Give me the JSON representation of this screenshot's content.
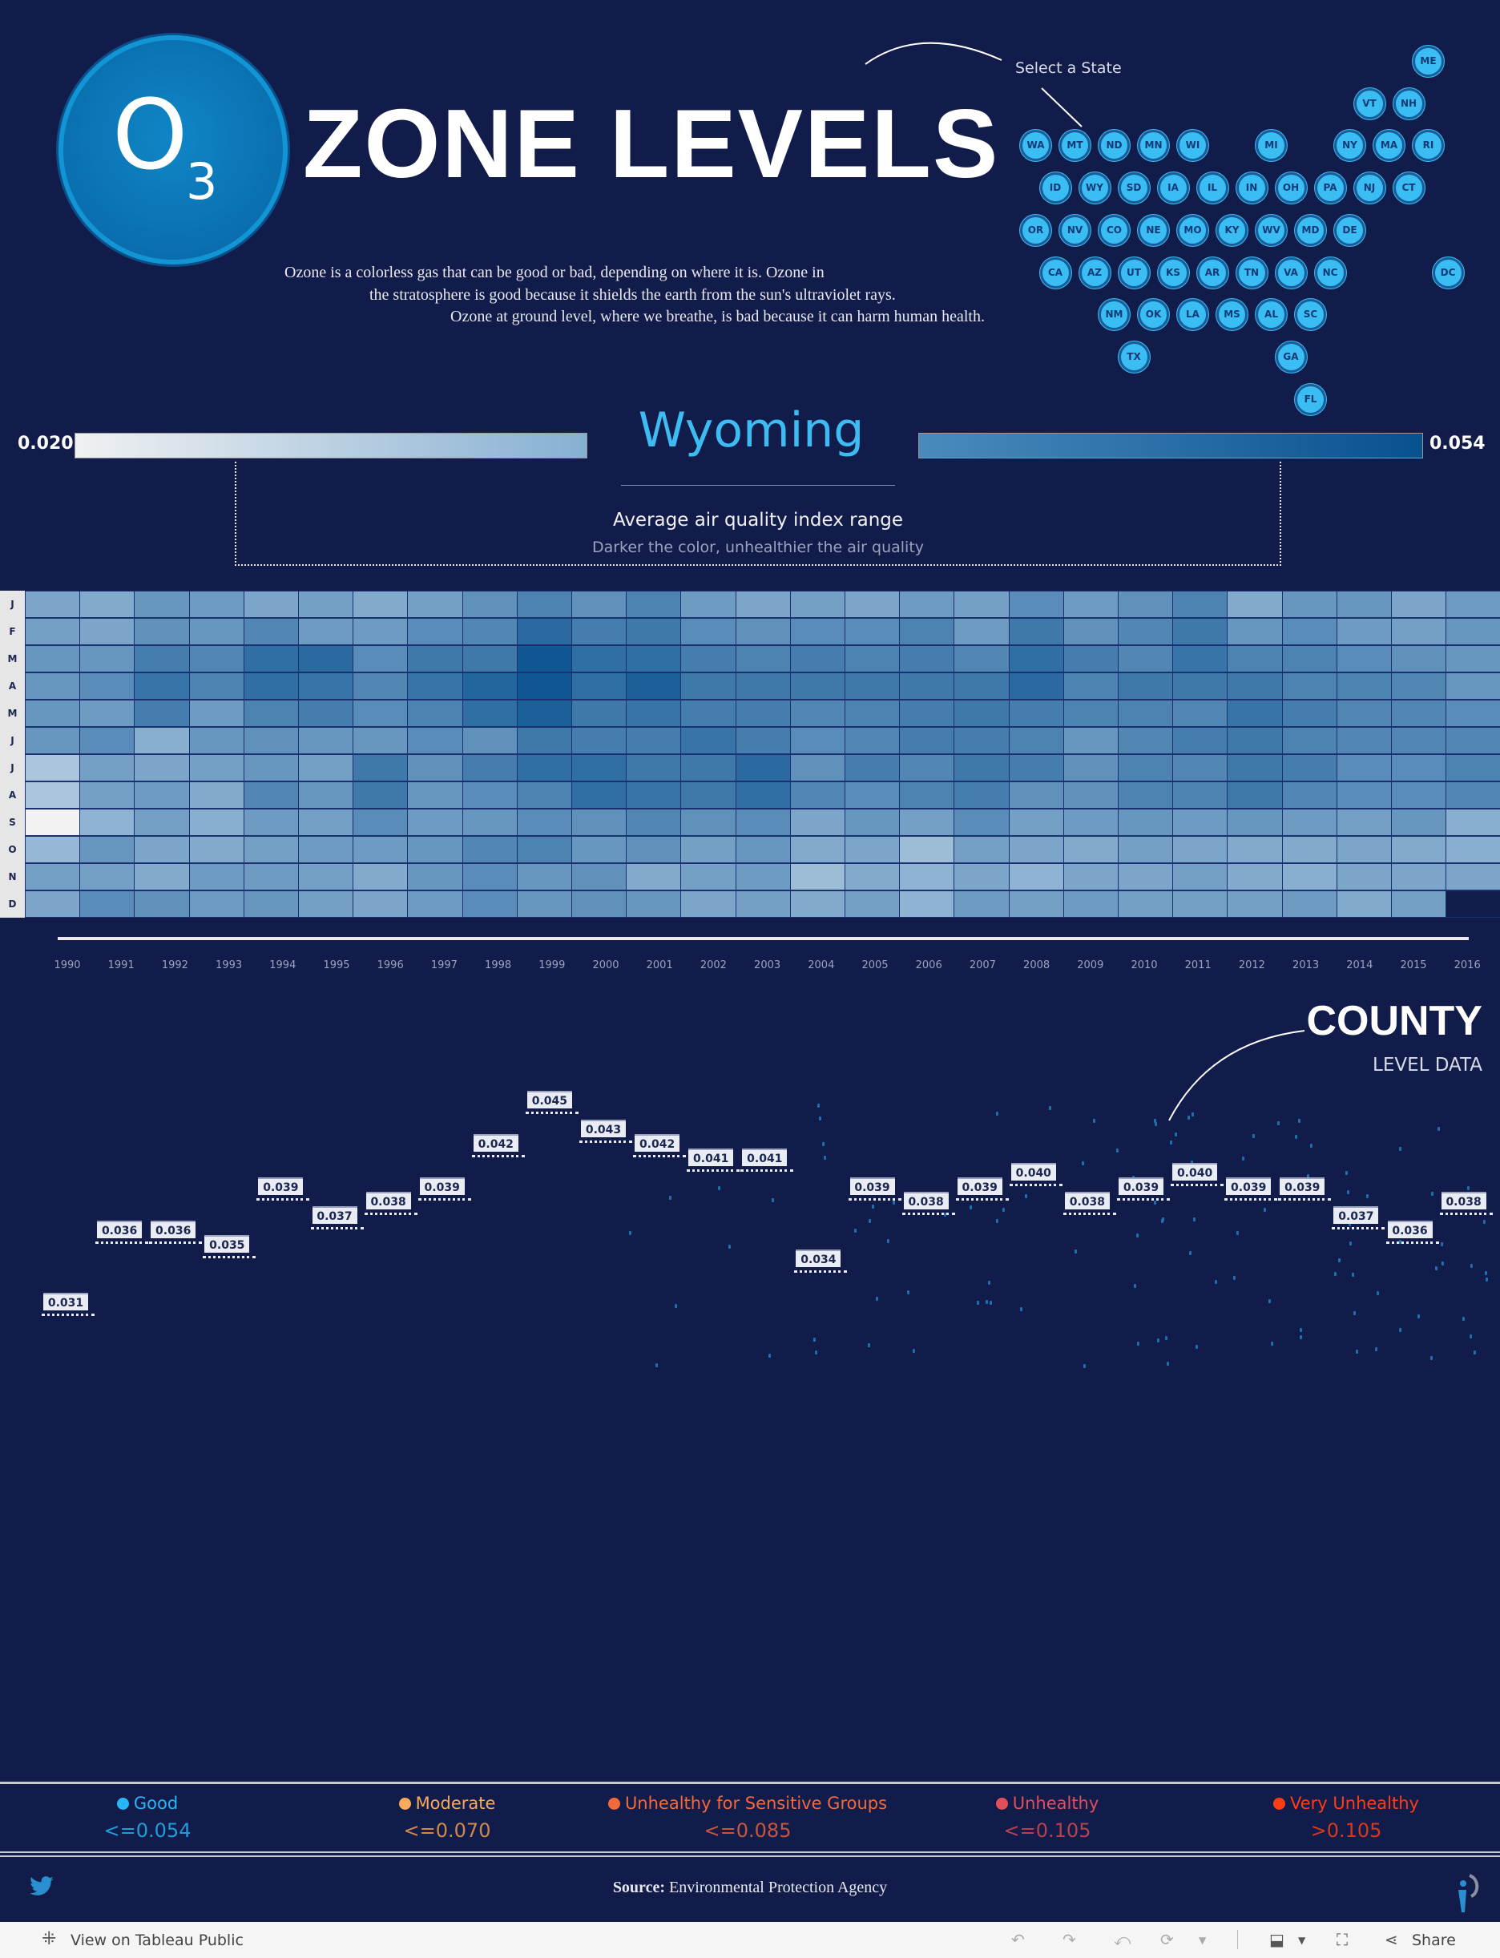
{
  "header": {
    "logo_main": "O",
    "logo_sub": "3",
    "title": "ZONE LEVELS",
    "description": [
      "Ozone is a colorless gas that can be good or bad, depending on where it is. Ozone in",
      "the stratosphere is good because it shields the earth from the sun's ultraviolet rays.",
      "Ozone at ground level, where we breathe, is bad because it can harm human health."
    ]
  },
  "state_selector": {
    "label": "Select a State",
    "tile_color": "#39bdf2",
    "selected": "WY",
    "states": [
      "ME",
      "VT",
      "NH",
      "WA",
      "MT",
      "ND",
      "MN",
      "WI",
      "MI",
      "NY",
      "MA",
      "RI",
      "ID",
      "WY",
      "SD",
      "IA",
      "IL",
      "IN",
      "OH",
      "PA",
      "NJ",
      "CT",
      "OR",
      "NV",
      "CO",
      "NE",
      "MO",
      "KY",
      "WV",
      "MD",
      "DE",
      "CA",
      "AZ",
      "UT",
      "KS",
      "AR",
      "TN",
      "VA",
      "NC",
      "DC",
      "NM",
      "OK",
      "LA",
      "MS",
      "AL",
      "SC",
      "TX",
      "GA",
      "FL"
    ]
  },
  "color_scale": {
    "min_label": "0.020",
    "max_label": "0.054",
    "state_name": "Wyoming",
    "title": "Average air quality index range",
    "subtitle": "Darker the color, unhealthier the air quality"
  },
  "county": {
    "title": "COUNTY",
    "subtitle": "LEVEL DATA"
  },
  "chart_data": [
    {
      "type": "heatmap",
      "title": "",
      "x_categories": [
        "1990",
        "1991",
        "1992",
        "1993",
        "1994",
        "1995",
        "1996",
        "1997",
        "1998",
        "1999",
        "2000",
        "2001",
        "2002",
        "2003",
        "2004",
        "2005",
        "2006",
        "2007",
        "2008",
        "2009",
        "2010",
        "2011",
        "2012",
        "2013",
        "2014",
        "2015",
        "2016"
      ],
      "y_categories": [
        "J",
        "F",
        "M",
        "A",
        "M",
        "J",
        "J",
        "A",
        "S",
        "O",
        "N",
        "D"
      ],
      "color_range": [
        0.02,
        0.054
      ],
      "colors": {
        "low": "#f2f2f2",
        "mid": "#8fb4d3",
        "high": "#08518f"
      },
      "values": [
        [
          0.037,
          0.036,
          0.04,
          0.039,
          0.037,
          0.038,
          0.036,
          0.038,
          0.041,
          0.044,
          0.041,
          0.044,
          0.039,
          0.037,
          0.038,
          0.037,
          0.039,
          0.038,
          0.042,
          0.039,
          0.041,
          0.044,
          0.036,
          0.04,
          0.04,
          0.037,
          0.039
        ],
        [
          0.038,
          0.037,
          0.041,
          0.04,
          0.043,
          0.039,
          0.039,
          0.042,
          0.043,
          0.049,
          0.045,
          0.046,
          0.042,
          0.041,
          0.042,
          0.042,
          0.044,
          0.039,
          0.046,
          0.041,
          0.043,
          0.046,
          0.04,
          0.042,
          0.039,
          0.038,
          0.04
        ],
        [
          0.04,
          0.04,
          0.045,
          0.043,
          0.048,
          0.049,
          0.042,
          0.046,
          0.046,
          0.053,
          0.048,
          0.048,
          0.045,
          0.044,
          0.045,
          0.044,
          0.045,
          0.043,
          0.048,
          0.045,
          0.043,
          0.047,
          0.044,
          0.044,
          0.042,
          0.041,
          0.04
        ],
        [
          0.04,
          0.042,
          0.047,
          0.044,
          0.048,
          0.047,
          0.043,
          0.047,
          0.05,
          0.053,
          0.048,
          0.051,
          0.046,
          0.046,
          0.046,
          0.046,
          0.046,
          0.046,
          0.049,
          0.044,
          0.046,
          0.046,
          0.046,
          0.044,
          0.044,
          0.043,
          0.04
        ],
        [
          0.04,
          0.039,
          0.045,
          0.039,
          0.044,
          0.045,
          0.042,
          0.044,
          0.048,
          0.051,
          0.046,
          0.047,
          0.045,
          0.045,
          0.043,
          0.044,
          0.045,
          0.046,
          0.045,
          0.044,
          0.044,
          0.043,
          0.047,
          0.045,
          0.043,
          0.043,
          0.042
        ],
        [
          0.04,
          0.042,
          0.035,
          0.04,
          0.041,
          0.04,
          0.04,
          0.042,
          0.041,
          0.046,
          0.045,
          0.045,
          0.047,
          0.045,
          0.042,
          0.043,
          0.045,
          0.045,
          0.044,
          0.04,
          0.043,
          0.045,
          0.046,
          0.044,
          0.043,
          0.043,
          0.043
        ],
        [
          0.03,
          0.038,
          0.037,
          0.038,
          0.04,
          0.038,
          0.046,
          0.041,
          0.045,
          0.048,
          0.048,
          0.046,
          0.046,
          0.049,
          0.041,
          0.045,
          0.043,
          0.046,
          0.045,
          0.041,
          0.044,
          0.043,
          0.046,
          0.045,
          0.042,
          0.042,
          0.044
        ],
        [
          0.03,
          0.038,
          0.039,
          0.036,
          0.043,
          0.04,
          0.046,
          0.04,
          0.042,
          0.044,
          0.048,
          0.047,
          0.046,
          0.048,
          0.043,
          0.042,
          0.044,
          0.045,
          0.041,
          0.041,
          0.044,
          0.044,
          0.046,
          0.043,
          0.042,
          0.042,
          0.043
        ],
        [
          0.02,
          0.034,
          0.038,
          0.035,
          0.039,
          0.038,
          0.042,
          0.039,
          0.04,
          0.042,
          0.041,
          0.043,
          0.041,
          0.042,
          0.037,
          0.04,
          0.038,
          0.042,
          0.038,
          0.039,
          0.04,
          0.039,
          0.04,
          0.039,
          0.038,
          0.04,
          0.035
        ],
        [
          0.033,
          0.04,
          0.037,
          0.036,
          0.038,
          0.039,
          0.039,
          0.04,
          0.043,
          0.044,
          0.04,
          0.041,
          0.038,
          0.04,
          0.036,
          0.037,
          0.032,
          0.038,
          0.037,
          0.036,
          0.038,
          0.037,
          0.036,
          0.036,
          0.037,
          0.036,
          0.035
        ],
        [
          0.038,
          0.038,
          0.036,
          0.039,
          0.039,
          0.038,
          0.036,
          0.04,
          0.042,
          0.04,
          0.041,
          0.036,
          0.038,
          0.039,
          0.032,
          0.036,
          0.034,
          0.037,
          0.034,
          0.037,
          0.037,
          0.038,
          0.036,
          0.035,
          0.037,
          0.037,
          0.037
        ],
        [
          0.037,
          0.042,
          0.041,
          0.039,
          0.04,
          0.038,
          0.037,
          0.039,
          0.042,
          0.04,
          0.041,
          0.04,
          0.037,
          0.038,
          0.036,
          0.038,
          0.034,
          0.039,
          0.038,
          0.039,
          0.038,
          0.038,
          0.038,
          0.039,
          0.036,
          0.038,
          null
        ]
      ]
    },
    {
      "type": "scatter",
      "title": "",
      "x": [
        "1990",
        "1991",
        "1992",
        "1993",
        "1994",
        "1995",
        "1996",
        "1997",
        "1998",
        "1999",
        "2000",
        "2001",
        "2002",
        "2003",
        "2004",
        "2005",
        "2006",
        "2007",
        "2008",
        "2009",
        "2010",
        "2011",
        "2012",
        "2013",
        "2014",
        "2015",
        "2016"
      ],
      "y": [
        0.031,
        0.036,
        0.036,
        0.035,
        0.039,
        0.037,
        0.038,
        0.039,
        0.042,
        0.045,
        0.043,
        0.042,
        0.041,
        0.041,
        0.034,
        0.039,
        0.038,
        0.039,
        0.04,
        0.038,
        0.039,
        0.04,
        0.039,
        0.039,
        0.037,
        0.036,
        0.038
      ],
      "labels": [
        "0.031",
        "0.036",
        "0.036",
        "0.035",
        "0.039",
        "0.037",
        "0.038",
        "0.039",
        "0.042",
        "0.045",
        "0.043",
        "0.042",
        "0.041",
        "0.041",
        "0.034",
        "0.039",
        "0.038",
        "0.039",
        "0.040",
        "0.038",
        "0.039",
        "0.040",
        "0.039",
        "0.039",
        "0.037",
        "0.036",
        "0.038"
      ]
    }
  ],
  "legend": [
    {
      "name": "Good",
      "range": "<=0.054",
      "color": "#29b6f6",
      "value_color": "#1e9ed8"
    },
    {
      "name": "Moderate",
      "range": "<=0.070",
      "color": "#f7a95c",
      "value_color": "#cf8a4a"
    },
    {
      "name": "Unhealthy for Sensitive Groups",
      "range": "<=0.085",
      "color": "#f26a3a",
      "value_color": "#c9553a"
    },
    {
      "name": "Unhealthy",
      "range": "<=0.105",
      "color": "#e0505a",
      "value_color": "#b8424b"
    },
    {
      "name": "Very Unhealthy",
      "range": ">0.105",
      "color": "#ff3d14",
      "value_color": "#d63a1a"
    }
  ],
  "footer": {
    "source_label": "Source:",
    "source_text": "Environmental Protection Agency"
  },
  "toolbar": {
    "view_label": "View on Tableau Public",
    "share_label": "Share"
  }
}
